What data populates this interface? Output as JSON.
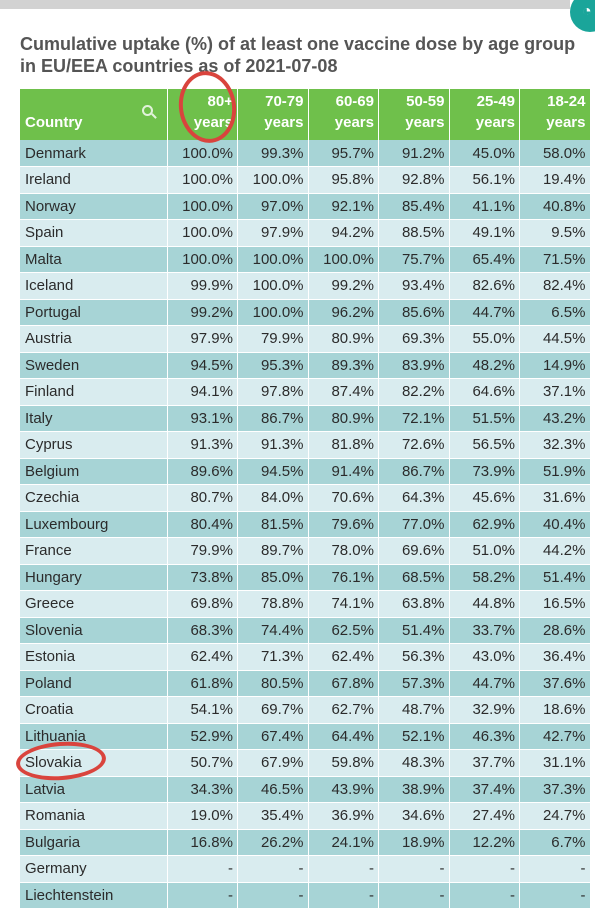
{
  "chart_data": {
    "type": "table",
    "title": "Cumulative uptake (%) of at least one vaccine dose by age group in EU/EEA countries as of 2021-07-08",
    "columns": [
      "Country",
      "80+ years",
      "70-79 years",
      "60-69 years",
      "50-59 years",
      "25-49 years",
      "18-24 years"
    ],
    "header": [
      {
        "line1": "",
        "line2": "Country"
      },
      {
        "line1": "80+",
        "line2": "years"
      },
      {
        "line1": "70-79",
        "line2": "years"
      },
      {
        "line1": "60-69",
        "line2": "years"
      },
      {
        "line1": "50-59",
        "line2": "years"
      },
      {
        "line1": "25-49",
        "line2": "years"
      },
      {
        "line1": "18-24",
        "line2": "years"
      }
    ],
    "rows": [
      [
        "Denmark",
        "100.0%",
        "99.3%",
        "95.7%",
        "91.2%",
        "45.0%",
        "58.0%"
      ],
      [
        "Ireland",
        "100.0%",
        "100.0%",
        "95.8%",
        "92.8%",
        "56.1%",
        "19.4%"
      ],
      [
        "Norway",
        "100.0%",
        "97.0%",
        "92.1%",
        "85.4%",
        "41.1%",
        "40.8%"
      ],
      [
        "Spain",
        "100.0%",
        "97.9%",
        "94.2%",
        "88.5%",
        "49.1%",
        "9.5%"
      ],
      [
        "Malta",
        "100.0%",
        "100.0%",
        "100.0%",
        "75.7%",
        "65.4%",
        "71.5%"
      ],
      [
        "Iceland",
        "99.9%",
        "100.0%",
        "99.2%",
        "93.4%",
        "82.6%",
        "82.4%"
      ],
      [
        "Portugal",
        "99.2%",
        "100.0%",
        "96.2%",
        "85.6%",
        "44.7%",
        "6.5%"
      ],
      [
        "Austria",
        "97.9%",
        "79.9%",
        "80.9%",
        "69.3%",
        "55.0%",
        "44.5%"
      ],
      [
        "Sweden",
        "94.5%",
        "95.3%",
        "89.3%",
        "83.9%",
        "48.2%",
        "14.9%"
      ],
      [
        "Finland",
        "94.1%",
        "97.8%",
        "87.4%",
        "82.2%",
        "64.6%",
        "37.1%"
      ],
      [
        "Italy",
        "93.1%",
        "86.7%",
        "80.9%",
        "72.1%",
        "51.5%",
        "43.2%"
      ],
      [
        "Cyprus",
        "91.3%",
        "91.3%",
        "81.8%",
        "72.6%",
        "56.5%",
        "32.3%"
      ],
      [
        "Belgium",
        "89.6%",
        "94.5%",
        "91.4%",
        "86.7%",
        "73.9%",
        "51.9%"
      ],
      [
        "Czechia",
        "80.7%",
        "84.0%",
        "70.6%",
        "64.3%",
        "45.6%",
        "31.6%"
      ],
      [
        "Luxembourg",
        "80.4%",
        "81.5%",
        "79.6%",
        "77.0%",
        "62.9%",
        "40.4%"
      ],
      [
        "France",
        "79.9%",
        "89.7%",
        "78.0%",
        "69.6%",
        "51.0%",
        "44.2%"
      ],
      [
        "Hungary",
        "73.8%",
        "85.0%",
        "76.1%",
        "68.5%",
        "58.2%",
        "51.4%"
      ],
      [
        "Greece",
        "69.8%",
        "78.8%",
        "74.1%",
        "63.8%",
        "44.8%",
        "16.5%"
      ],
      [
        "Slovenia",
        "68.3%",
        "74.4%",
        "62.5%",
        "51.4%",
        "33.7%",
        "28.6%"
      ],
      [
        "Estonia",
        "62.4%",
        "71.3%",
        "62.4%",
        "56.3%",
        "43.0%",
        "36.4%"
      ],
      [
        "Poland",
        "61.8%",
        "80.5%",
        "67.8%",
        "57.3%",
        "44.7%",
        "37.6%"
      ],
      [
        "Croatia",
        "54.1%",
        "69.7%",
        "62.7%",
        "48.7%",
        "32.9%",
        "18.6%"
      ],
      [
        "Lithuania",
        "52.9%",
        "67.4%",
        "64.4%",
        "52.1%",
        "46.3%",
        "42.7%"
      ],
      [
        "Slovakia",
        "50.7%",
        "67.9%",
        "59.8%",
        "48.3%",
        "37.7%",
        "31.1%"
      ],
      [
        "Latvia",
        "34.3%",
        "46.5%",
        "43.9%",
        "38.9%",
        "37.4%",
        "37.3%"
      ],
      [
        "Romania",
        "19.0%",
        "35.4%",
        "36.9%",
        "34.6%",
        "27.4%",
        "24.7%"
      ],
      [
        "Bulgaria",
        "16.8%",
        "26.2%",
        "24.1%",
        "18.9%",
        "12.2%",
        "6.7%"
      ],
      [
        "Germany",
        "-",
        "-",
        "-",
        "-",
        "-",
        "-"
      ],
      [
        "Liechtenstein",
        "-",
        "-",
        "-",
        "-",
        "-",
        "-"
      ]
    ]
  },
  "colors": {
    "header_bg": "#6fc04b",
    "row_odd": "#a7d4d6",
    "row_even": "#d9ecef",
    "annotation": "#d9443d"
  },
  "icons": [
    "search-icon"
  ],
  "annotations": [
    "circle around 80+ years column header",
    "circle around Slovakia row label"
  ]
}
